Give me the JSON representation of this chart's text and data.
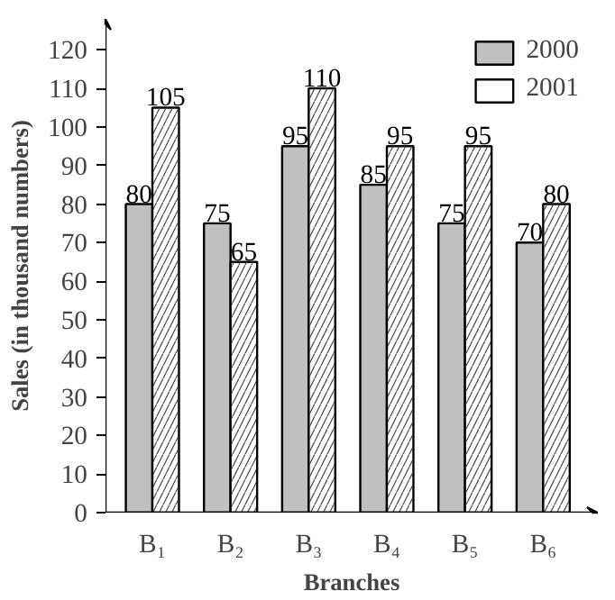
{
  "chart_data": {
    "type": "bar",
    "xlabel": "Branches",
    "ylabel": "Sales (in thousand numbers)",
    "categories": [
      "B₁",
      "B₂",
      "B₃",
      "B₄",
      "B₅",
      "B₆"
    ],
    "series": [
      {
        "name": "2000",
        "color": "#c0c0c0",
        "values": [
          80,
          75,
          95,
          85,
          75,
          70
        ]
      },
      {
        "name": "2001",
        "color": "#ffffff",
        "values": [
          105,
          65,
          110,
          95,
          95,
          80
        ]
      }
    ],
    "ylim": [
      0,
      128
    ],
    "yticks": [
      0,
      10,
      20,
      30,
      40,
      50,
      60,
      70,
      80,
      90,
      100,
      110,
      120
    ],
    "data_labels": true,
    "legend": "top right",
    "grid": false
  }
}
